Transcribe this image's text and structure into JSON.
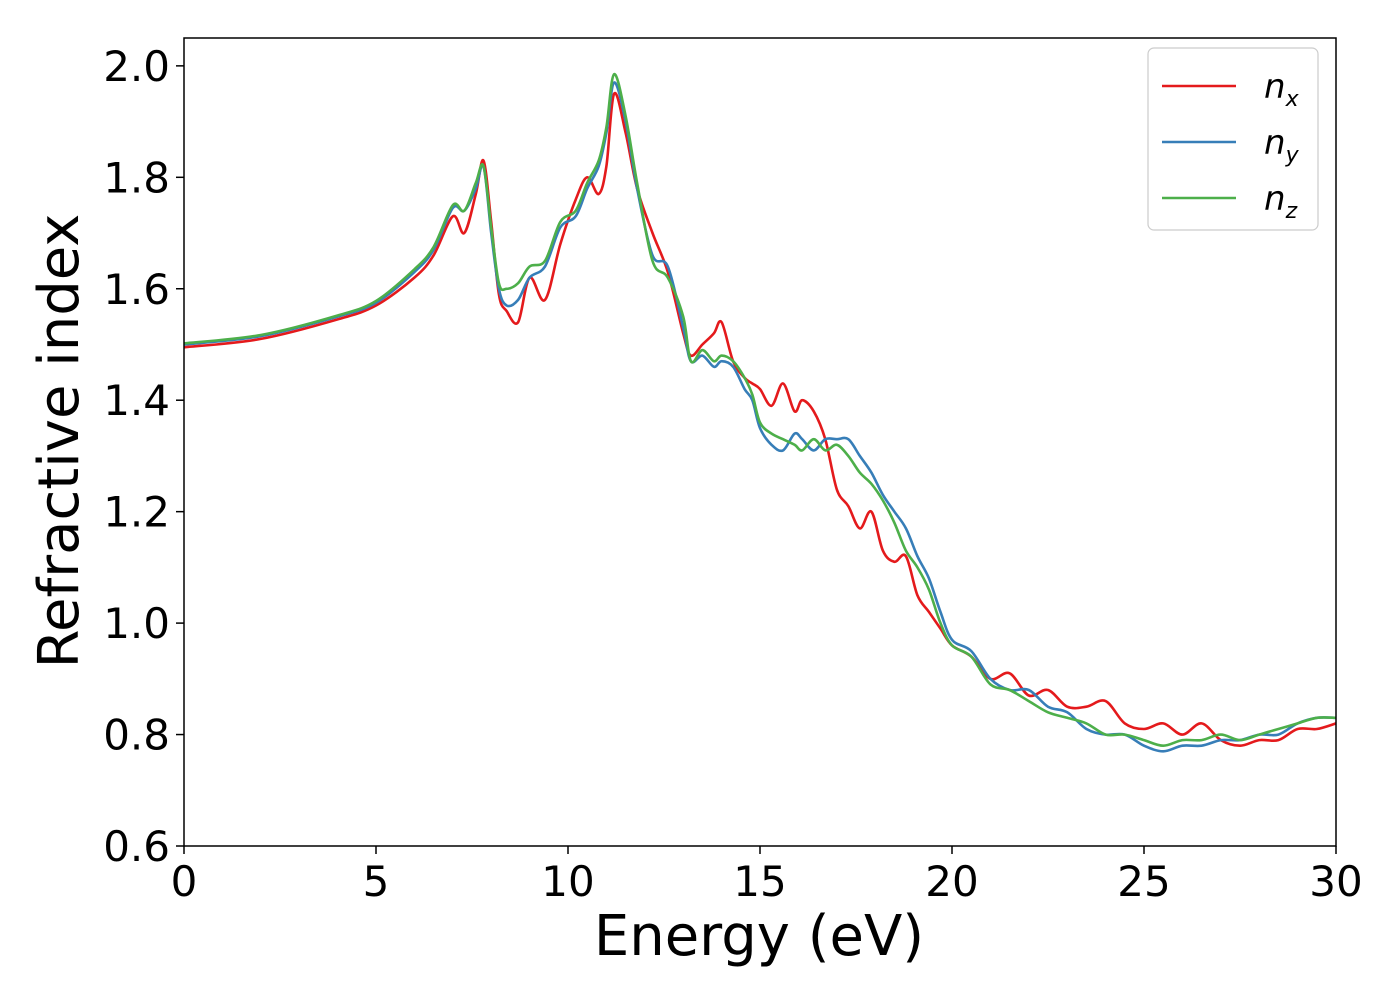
{
  "chart_data": {
    "type": "line",
    "xlabel": "Energy (eV)",
    "ylabel": "Refractive index",
    "xlim": [
      0,
      30
    ],
    "ylim": [
      0.6,
      2.05
    ],
    "xticks": [
      "0",
      "5",
      "10",
      "15",
      "20",
      "25",
      "30"
    ],
    "yticks": [
      "0.6",
      "0.8",
      "1.0",
      "1.2",
      "1.4",
      "1.6",
      "1.8",
      "2.0"
    ],
    "grid": false,
    "legend_position": "top-right",
    "series": [
      {
        "name": "n",
        "subscript": "x",
        "color": "#e41a1c",
        "x": [
          0,
          2,
          4,
          5,
          6,
          6.5,
          7,
          7.3,
          7.6,
          7.8,
          8.0,
          8.2,
          8.4,
          8.7,
          9.0,
          9.4,
          9.8,
          10.2,
          10.5,
          10.8,
          11.0,
          11.2,
          11.5,
          11.8,
          12.2,
          12.6,
          13.0,
          13.2,
          13.5,
          13.8,
          14.0,
          14.3,
          14.6,
          14.8,
          15.0,
          15.3,
          15.6,
          15.9,
          16.1,
          16.4,
          16.7,
          17.0,
          17.3,
          17.6,
          17.9,
          18.2,
          18.5,
          18.8,
          19.1,
          19.4,
          19.7,
          20.0,
          20.5,
          21.0,
          21.5,
          22.0,
          22.5,
          23.0,
          23.5,
          24.0,
          24.5,
          25.0,
          25.5,
          26.0,
          26.5,
          27.0,
          27.5,
          28.0,
          28.5,
          29.0,
          29.5,
          30.0
        ],
        "values": [
          1.495,
          1.51,
          1.545,
          1.57,
          1.62,
          1.66,
          1.73,
          1.7,
          1.77,
          1.83,
          1.72,
          1.59,
          1.56,
          1.54,
          1.62,
          1.58,
          1.68,
          1.76,
          1.8,
          1.77,
          1.82,
          1.95,
          1.88,
          1.78,
          1.7,
          1.63,
          1.52,
          1.48,
          1.5,
          1.52,
          1.54,
          1.47,
          1.44,
          1.43,
          1.42,
          1.39,
          1.43,
          1.38,
          1.4,
          1.38,
          1.33,
          1.24,
          1.21,
          1.17,
          1.2,
          1.13,
          1.11,
          1.12,
          1.05,
          1.02,
          0.99,
          0.96,
          0.94,
          0.9,
          0.91,
          0.87,
          0.88,
          0.85,
          0.85,
          0.86,
          0.82,
          0.81,
          0.82,
          0.8,
          0.82,
          0.79,
          0.78,
          0.79,
          0.79,
          0.81,
          0.81,
          0.82
        ]
      },
      {
        "name": "n",
        "subscript": "y",
        "color": "#377eb8",
        "x": [
          0,
          2,
          4,
          5,
          6,
          6.5,
          7,
          7.3,
          7.6,
          7.8,
          8.0,
          8.2,
          8.4,
          8.7,
          9.0,
          9.4,
          9.8,
          10.2,
          10.5,
          10.8,
          11.0,
          11.2,
          11.5,
          11.8,
          12.2,
          12.6,
          13.0,
          13.2,
          13.5,
          13.8,
          14.0,
          14.3,
          14.6,
          14.8,
          15.0,
          15.3,
          15.6,
          15.9,
          16.1,
          16.4,
          16.7,
          17.0,
          17.3,
          17.6,
          17.9,
          18.2,
          18.5,
          18.8,
          19.1,
          19.4,
          19.7,
          20.0,
          20.5,
          21.0,
          21.5,
          22.0,
          22.5,
          23.0,
          23.5,
          24.0,
          24.5,
          25.0,
          25.5,
          26.0,
          26.5,
          27.0,
          27.5,
          28.0,
          28.5,
          29.0,
          29.5,
          30.0
        ],
        "values": [
          1.5,
          1.515,
          1.55,
          1.575,
          1.63,
          1.67,
          1.745,
          1.74,
          1.78,
          1.82,
          1.7,
          1.6,
          1.57,
          1.58,
          1.62,
          1.64,
          1.71,
          1.73,
          1.78,
          1.82,
          1.88,
          1.97,
          1.9,
          1.78,
          1.66,
          1.64,
          1.53,
          1.47,
          1.48,
          1.46,
          1.47,
          1.46,
          1.42,
          1.4,
          1.35,
          1.32,
          1.31,
          1.34,
          1.33,
          1.31,
          1.33,
          1.33,
          1.33,
          1.3,
          1.27,
          1.23,
          1.2,
          1.17,
          1.12,
          1.08,
          1.02,
          0.97,
          0.95,
          0.9,
          0.88,
          0.88,
          0.85,
          0.84,
          0.81,
          0.8,
          0.8,
          0.78,
          0.77,
          0.78,
          0.78,
          0.79,
          0.79,
          0.8,
          0.8,
          0.82,
          0.83,
          0.83
        ]
      },
      {
        "name": "n",
        "subscript": "z",
        "color": "#4daf4a",
        "x": [
          0,
          2,
          4,
          5,
          6,
          6.5,
          7,
          7.3,
          7.6,
          7.8,
          8.0,
          8.2,
          8.4,
          8.7,
          9.0,
          9.4,
          9.8,
          10.2,
          10.5,
          10.8,
          11.0,
          11.2,
          11.5,
          11.8,
          12.2,
          12.6,
          13.0,
          13.2,
          13.5,
          13.8,
          14.0,
          14.3,
          14.6,
          14.8,
          15.0,
          15.3,
          15.6,
          15.9,
          16.1,
          16.4,
          16.7,
          17.0,
          17.3,
          17.6,
          17.9,
          18.2,
          18.5,
          18.8,
          19.1,
          19.4,
          19.7,
          20.0,
          20.5,
          21.0,
          21.5,
          22.0,
          22.5,
          23.0,
          23.5,
          24.0,
          24.5,
          25.0,
          25.5,
          26.0,
          26.5,
          27.0,
          27.5,
          28.0,
          28.5,
          29.0,
          29.5,
          30.0
        ],
        "values": [
          1.502,
          1.517,
          1.552,
          1.578,
          1.635,
          1.675,
          1.75,
          1.74,
          1.79,
          1.82,
          1.71,
          1.61,
          1.6,
          1.61,
          1.64,
          1.65,
          1.72,
          1.74,
          1.79,
          1.83,
          1.89,
          1.985,
          1.91,
          1.79,
          1.65,
          1.62,
          1.55,
          1.47,
          1.49,
          1.47,
          1.48,
          1.47,
          1.44,
          1.41,
          1.36,
          1.34,
          1.33,
          1.32,
          1.31,
          1.33,
          1.31,
          1.32,
          1.3,
          1.27,
          1.25,
          1.22,
          1.18,
          1.13,
          1.1,
          1.06,
          1.0,
          0.96,
          0.94,
          0.89,
          0.88,
          0.86,
          0.84,
          0.83,
          0.82,
          0.8,
          0.8,
          0.79,
          0.78,
          0.79,
          0.79,
          0.8,
          0.79,
          0.8,
          0.81,
          0.82,
          0.83,
          0.83
        ]
      }
    ]
  }
}
